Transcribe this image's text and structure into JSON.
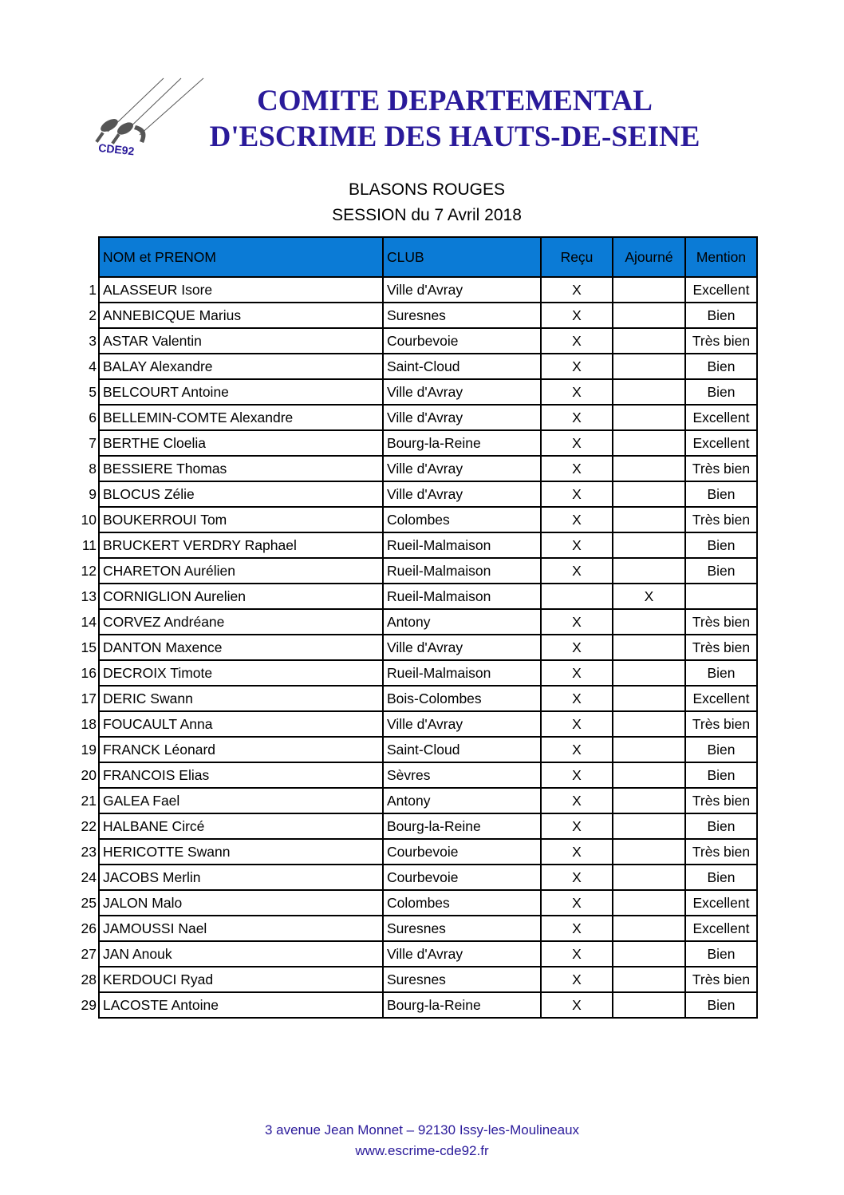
{
  "header": {
    "logo_text": "CDE92",
    "title_line1": "COMITE DEPARTEMENTAL",
    "title_line2": "D'ESCRIME DES HAUTS-DE-SEINE",
    "subtitle1": "BLASONS ROUGES",
    "subtitle2": "SESSION du 7 Avril 2018"
  },
  "table": {
    "header_color": "#0b7bd6",
    "columns": [
      "NOM et PRENOM",
      "CLUB",
      "Reçu",
      "Ajourné",
      "Mention"
    ],
    "rows": [
      [
        "1",
        "ALASSEUR Isore",
        "Ville d'Avray",
        "X",
        "",
        "Excellent"
      ],
      [
        "2",
        "ANNEBICQUE Marius",
        "Suresnes",
        "X",
        "",
        "Bien"
      ],
      [
        "3",
        "ASTAR Valentin",
        "Courbevoie",
        "X",
        "",
        "Très bien"
      ],
      [
        "4",
        "BALAY Alexandre",
        "Saint-Cloud",
        "X",
        "",
        "Bien"
      ],
      [
        "5",
        "BELCOURT Antoine",
        "Ville d'Avray",
        "X",
        "",
        "Bien"
      ],
      [
        "6",
        "BELLEMIN-COMTE Alexandre",
        "Ville d'Avray",
        "X",
        "",
        "Excellent"
      ],
      [
        "7",
        "BERTHE Cloelia",
        "Bourg-la-Reine",
        "X",
        "",
        "Excellent"
      ],
      [
        "8",
        "BESSIERE Thomas",
        "Ville d'Avray",
        "X",
        "",
        "Très bien"
      ],
      [
        "9",
        "BLOCUS Zélie",
        "Ville d'Avray",
        "X",
        "",
        "Bien"
      ],
      [
        "10",
        "BOUKERROUI Tom",
        "Colombes",
        "X",
        "",
        "Très bien"
      ],
      [
        "11",
        "BRUCKERT VERDRY Raphael",
        "Rueil-Malmaison",
        "X",
        "",
        "Bien"
      ],
      [
        "12",
        "CHARETON Aurélien",
        "Rueil-Malmaison",
        "X",
        "",
        "Bien"
      ],
      [
        "13",
        "CORNIGLION Aurelien",
        "Rueil-Malmaison",
        "",
        "X",
        ""
      ],
      [
        "14",
        "CORVEZ Andréane",
        "Antony",
        "X",
        "",
        "Très bien"
      ],
      [
        "15",
        "DANTON Maxence",
        "Ville d'Avray",
        "X",
        "",
        "Très bien"
      ],
      [
        "16",
        "DECROIX Timote",
        "Rueil-Malmaison",
        "X",
        "",
        "Bien"
      ],
      [
        "17",
        "DERIC Swann",
        "Bois-Colombes",
        "X",
        "",
        "Excellent"
      ],
      [
        "18",
        "FOUCAULT Anna",
        "Ville d'Avray",
        "X",
        "",
        "Très bien"
      ],
      [
        "19",
        "FRANCK Léonard",
        "Saint-Cloud",
        "X",
        "",
        "Bien"
      ],
      [
        "20",
        "FRANCOIS Elias",
        "Sèvres",
        "X",
        "",
        "Bien"
      ],
      [
        "21",
        "GALEA Fael",
        "Antony",
        "X",
        "",
        "Très bien"
      ],
      [
        "22",
        "HALBANE Circé",
        "Bourg-la-Reine",
        "X",
        "",
        "Bien"
      ],
      [
        "23",
        "HERICOTTE Swann",
        "Courbevoie",
        "X",
        "",
        "Très bien"
      ],
      [
        "24",
        "JACOBS Merlin",
        "Courbevoie",
        "X",
        "",
        "Bien"
      ],
      [
        "25",
        "JALON Malo",
        "Colombes",
        "X",
        "",
        "Excellent"
      ],
      [
        "26",
        "JAMOUSSI Nael",
        "Suresnes",
        "X",
        "",
        "Excellent"
      ],
      [
        "27",
        "JAN Anouk",
        "Ville d'Avray",
        "X",
        "",
        "Bien"
      ],
      [
        "28",
        "KERDOUCI Ryad",
        "Suresnes",
        "X",
        "",
        "Très bien"
      ],
      [
        "29",
        "LACOSTE Antoine",
        "Bourg-la-Reine",
        "X",
        "",
        "Bien"
      ]
    ]
  },
  "footer": {
    "address": "3 avenue Jean Monnet – 92130 Issy-les-Moulineaux",
    "website": "www.escrime-cde92.fr"
  }
}
